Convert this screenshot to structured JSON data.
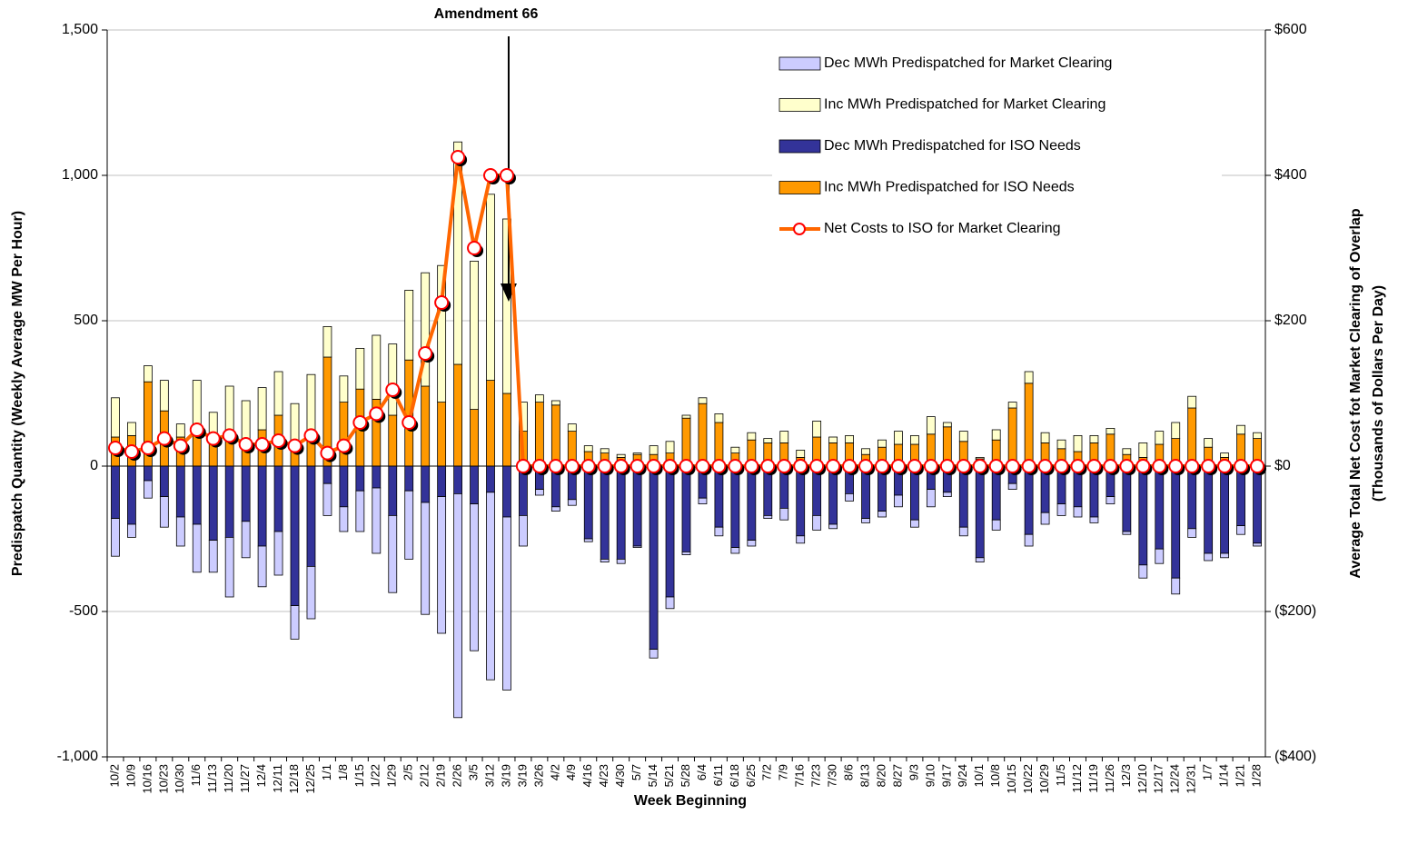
{
  "chart_data": {
    "type": "bar-line",
    "annotation": "Amendment 66",
    "xlabel": "Week Beginning",
    "ylabel": "Predispatch Quantity (Weekly Average MW Per Hour)",
    "y2label": [
      "Average Total Net Cost fot Market Clearing of Overlap",
      "(Thousands of Dollars Per Day)"
    ],
    "categories": [
      "10/2",
      "10/9",
      "10/16",
      "10/23",
      "10/30",
      "11/6",
      "11/13",
      "11/20",
      "11/27",
      "12/4",
      "12/11",
      "12/18",
      "12/25",
      "1/1",
      "1/8",
      "1/15",
      "1/22",
      "1/29",
      "2/5",
      "2/12",
      "2/19",
      "2/26",
      "3/5",
      "3/12",
      "3/19",
      "3/19",
      "3/26",
      "4/2",
      "4/9",
      "4/16",
      "4/23",
      "4/30",
      "5/7",
      "5/14",
      "5/21",
      "5/28",
      "6/4",
      "6/11",
      "6/18",
      "6/25",
      "7/2",
      "7/9",
      "7/16",
      "7/23",
      "7/30",
      "8/6",
      "8/13",
      "8/20",
      "8/27",
      "9/3",
      "9/10",
      "9/17",
      "9/24",
      "10/1",
      "10/8",
      "10/15",
      "10/22",
      "10/29",
      "11/5",
      "11/12",
      "11/19",
      "11/26",
      "12/3",
      "12/10",
      "12/17",
      "12/24",
      "12/31",
      "1/7",
      "1/14",
      "1/21",
      "1/28"
    ],
    "series": [
      {
        "name": "Dec MWh Predispatched for Market Clearing",
        "color": "#ccccff",
        "values": [
          -130,
          -45,
          -60,
          -105,
          -100,
          -165,
          -110,
          -205,
          -125,
          -140,
          -150,
          -115,
          -180,
          -110,
          -85,
          -140,
          -225,
          -265,
          -235,
          -385,
          -470,
          -770,
          -505,
          -645,
          -595,
          -105,
          -20,
          -15,
          -20,
          -10,
          -10,
          -15,
          -5,
          -30,
          -40,
          -10,
          -20,
          -30,
          -20,
          -20,
          -10,
          -40,
          -25,
          -50,
          -15,
          -25,
          -15,
          -20,
          -40,
          -25,
          -60,
          -15,
          -30,
          -15,
          -35,
          -20,
          -40,
          -40,
          -40,
          -35,
          -20,
          -25,
          -10,
          -45,
          -50,
          -55,
          -30,
          -25,
          -15,
          -30,
          -10
        ]
      },
      {
        "name": "Inc MWh Predispatched for Market Clearing",
        "color": "#ffffcc",
        "values": [
          135,
          45,
          55,
          105,
          45,
          175,
          85,
          175,
          145,
          145,
          150,
          135,
          215,
          105,
          90,
          140,
          220,
          245,
          240,
          390,
          470,
          765,
          510,
          640,
          600,
          100,
          25,
          15,
          25,
          20,
          15,
          10,
          5,
          30,
          40,
          10,
          20,
          30,
          20,
          25,
          15,
          40,
          25,
          55,
          20,
          25,
          20,
          25,
          45,
          30,
          60,
          15,
          35,
          5,
          35,
          20,
          40,
          35,
          30,
          55,
          25,
          20,
          20,
          50,
          45,
          55,
          40,
          30,
          15,
          30,
          20
        ]
      },
      {
        "name": "Dec MWh Predispatched for ISO Needs",
        "color": "#333399",
        "values": [
          -180,
          -200,
          -50,
          -105,
          -175,
          -200,
          -255,
          -245,
          -190,
          -275,
          -225,
          -480,
          -345,
          -60,
          -140,
          -85,
          -75,
          -170,
          -85,
          -125,
          -105,
          -95,
          -130,
          -90,
          -175,
          -170,
          -80,
          -140,
          -115,
          -250,
          -320,
          -320,
          -275,
          -630,
          -450,
          -295,
          -110,
          -210,
          -280,
          -255,
          -170,
          -145,
          -240,
          -170,
          -200,
          -95,
          -180,
          -155,
          -100,
          -185,
          -80,
          -90,
          -210,
          -315,
          -185,
          -60,
          -235,
          -160,
          -130,
          -140,
          -175,
          -105,
          -225,
          -340,
          -285,
          -385,
          -215,
          -300,
          -300,
          -205,
          -265
        ]
      },
      {
        "name": "Inc MWh Predispatched for ISO Needs",
        "color": "#ff9900",
        "values": [
          100,
          105,
          290,
          190,
          100,
          120,
          100,
          100,
          80,
          125,
          175,
          80,
          100,
          375,
          220,
          265,
          230,
          175,
          365,
          275,
          220,
          350,
          195,
          295,
          250,
          120,
          220,
          210,
          120,
          50,
          45,
          30,
          40,
          40,
          45,
          165,
          215,
          150,
          45,
          90,
          80,
          80,
          30,
          100,
          80,
          80,
          40,
          65,
          75,
          75,
          110,
          135,
          85,
          25,
          90,
          200,
          285,
          80,
          60,
          50,
          80,
          110,
          40,
          30,
          75,
          95,
          200,
          65,
          30,
          110,
          95
        ]
      },
      {
        "name": "Net Costs to ISO for Market Clearing",
        "color": "#ff6600",
        "axis": "y2",
        "values": [
          25,
          20,
          25,
          38,
          28,
          50,
          38,
          42,
          30,
          30,
          35,
          28,
          42,
          18,
          28,
          60,
          72,
          105,
          60,
          155,
          225,
          425,
          300,
          400,
          400,
          0,
          0,
          0,
          0,
          0,
          0,
          0,
          0,
          0,
          0,
          0,
          0,
          0,
          0,
          0,
          0,
          0,
          0,
          0,
          0,
          0,
          0,
          0,
          0,
          0,
          0,
          0,
          0,
          0,
          0,
          0,
          0,
          0,
          0,
          0,
          0,
          0,
          0,
          0,
          0,
          0,
          0,
          0,
          0,
          0,
          0
        ]
      }
    ],
    "ylim": [
      -1000,
      1500
    ],
    "yticks": [
      {
        "value": 1500,
        "label": "1,500"
      },
      {
        "value": 1000,
        "label": "1,000"
      },
      500,
      0,
      -500,
      {
        "value": -1000,
        "label": "-1,000"
      }
    ],
    "y2lim": [
      -400,
      600
    ],
    "y2ticks": [
      {
        "value": 600,
        "label": "$600"
      },
      {
        "value": 400,
        "label": "$400"
      },
      {
        "value": 200,
        "label": "$200"
      },
      {
        "value": 0,
        "label": "$0"
      },
      {
        "value": -200,
        "label": "($200)"
      },
      {
        "value": -400,
        "label": "($400)"
      }
    ],
    "grid": true
  }
}
